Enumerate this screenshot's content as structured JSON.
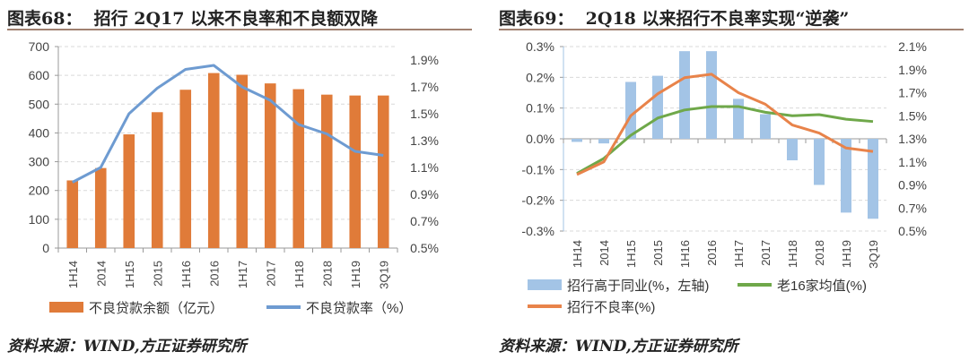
{
  "chart_data": [
    {
      "type": "bar+line",
      "title": "图表68：  招行 2Q17 以来不良率和不良额双降",
      "source": "资料来源：WIND,方正证券研究所",
      "categories": [
        "1H14",
        "2014",
        "1H15",
        "2015",
        "1H16",
        "2016",
        "1H17",
        "2017",
        "1H18",
        "2018",
        "1H19",
        "3Q19"
      ],
      "series": [
        {
          "name": "不良贷款余额（亿元）",
          "kind": "bar",
          "axis": "left",
          "color": "#E07B39",
          "values": [
            235,
            278,
            395,
            472,
            550,
            608,
            602,
            572,
            552,
            533,
            530,
            530
          ]
        },
        {
          "name": "不良贷款率（%）",
          "kind": "line",
          "axis": "right",
          "color": "#6E9BD1",
          "values": [
            0.99,
            1.1,
            1.5,
            1.69,
            1.83,
            1.86,
            1.7,
            1.6,
            1.42,
            1.35,
            1.22,
            1.19
          ]
        }
      ],
      "left_axis": {
        "range": [
          0,
          700
        ],
        "ticks": [
          "0",
          "100",
          "200",
          "300",
          "400",
          "500",
          "600",
          "700"
        ]
      },
      "right_axis": {
        "range": [
          0.5,
          2.0
        ],
        "ticks": [
          "0.5%",
          "0.7%",
          "0.9%",
          "1.1%",
          "1.3%",
          "1.5%",
          "1.7%",
          "1.9%"
        ]
      },
      "grid": "horizontal dashed",
      "legend": "bottom"
    },
    {
      "type": "bar+line",
      "title": "图表69：  2Q18 以来招行不良率实现“逆袭”",
      "source": "资料来源：WIND,方正证券研究所",
      "categories": [
        "1H14",
        "2014",
        "1H15",
        "2015",
        "1H16",
        "2016",
        "1H17",
        "2017",
        "1H18",
        "2018",
        "1H19",
        "3Q19"
      ],
      "series": [
        {
          "name": "招行高于同业(%，左轴)",
          "kind": "bar",
          "axis": "left",
          "color": "#A3C4E6",
          "values": [
            -0.01,
            -0.015,
            0.185,
            0.205,
            0.285,
            0.285,
            0.13,
            0.08,
            -0.07,
            -0.15,
            -0.24,
            -0.26
          ]
        },
        {
          "name": "老16家均值(%)",
          "kind": "line",
          "axis": "right",
          "color": "#6FA84A",
          "values": [
            1.0,
            1.13,
            1.33,
            1.48,
            1.55,
            1.58,
            1.58,
            1.53,
            1.5,
            1.51,
            1.47,
            1.45
          ]
        },
        {
          "name": "招行不良率(%)",
          "kind": "line",
          "axis": "right",
          "color": "#E8834A",
          "values": [
            0.99,
            1.1,
            1.5,
            1.69,
            1.83,
            1.86,
            1.7,
            1.6,
            1.42,
            1.35,
            1.22,
            1.19
          ]
        }
      ],
      "left_axis": {
        "range": [
          -0.3,
          0.3
        ],
        "ticks": [
          "-0.3%",
          "-0.2%",
          "-0.1%",
          "0.0%",
          "0.1%",
          "0.2%",
          "0.3%"
        ]
      },
      "right_axis": {
        "range": [
          0.5,
          2.1
        ],
        "ticks": [
          "0.5%",
          "0.7%",
          "0.9%",
          "1.1%",
          "1.3%",
          "1.5%",
          "1.7%",
          "1.9%",
          "2.1%"
        ]
      },
      "grid": "horizontal dashed",
      "legend": "bottom"
    }
  ]
}
